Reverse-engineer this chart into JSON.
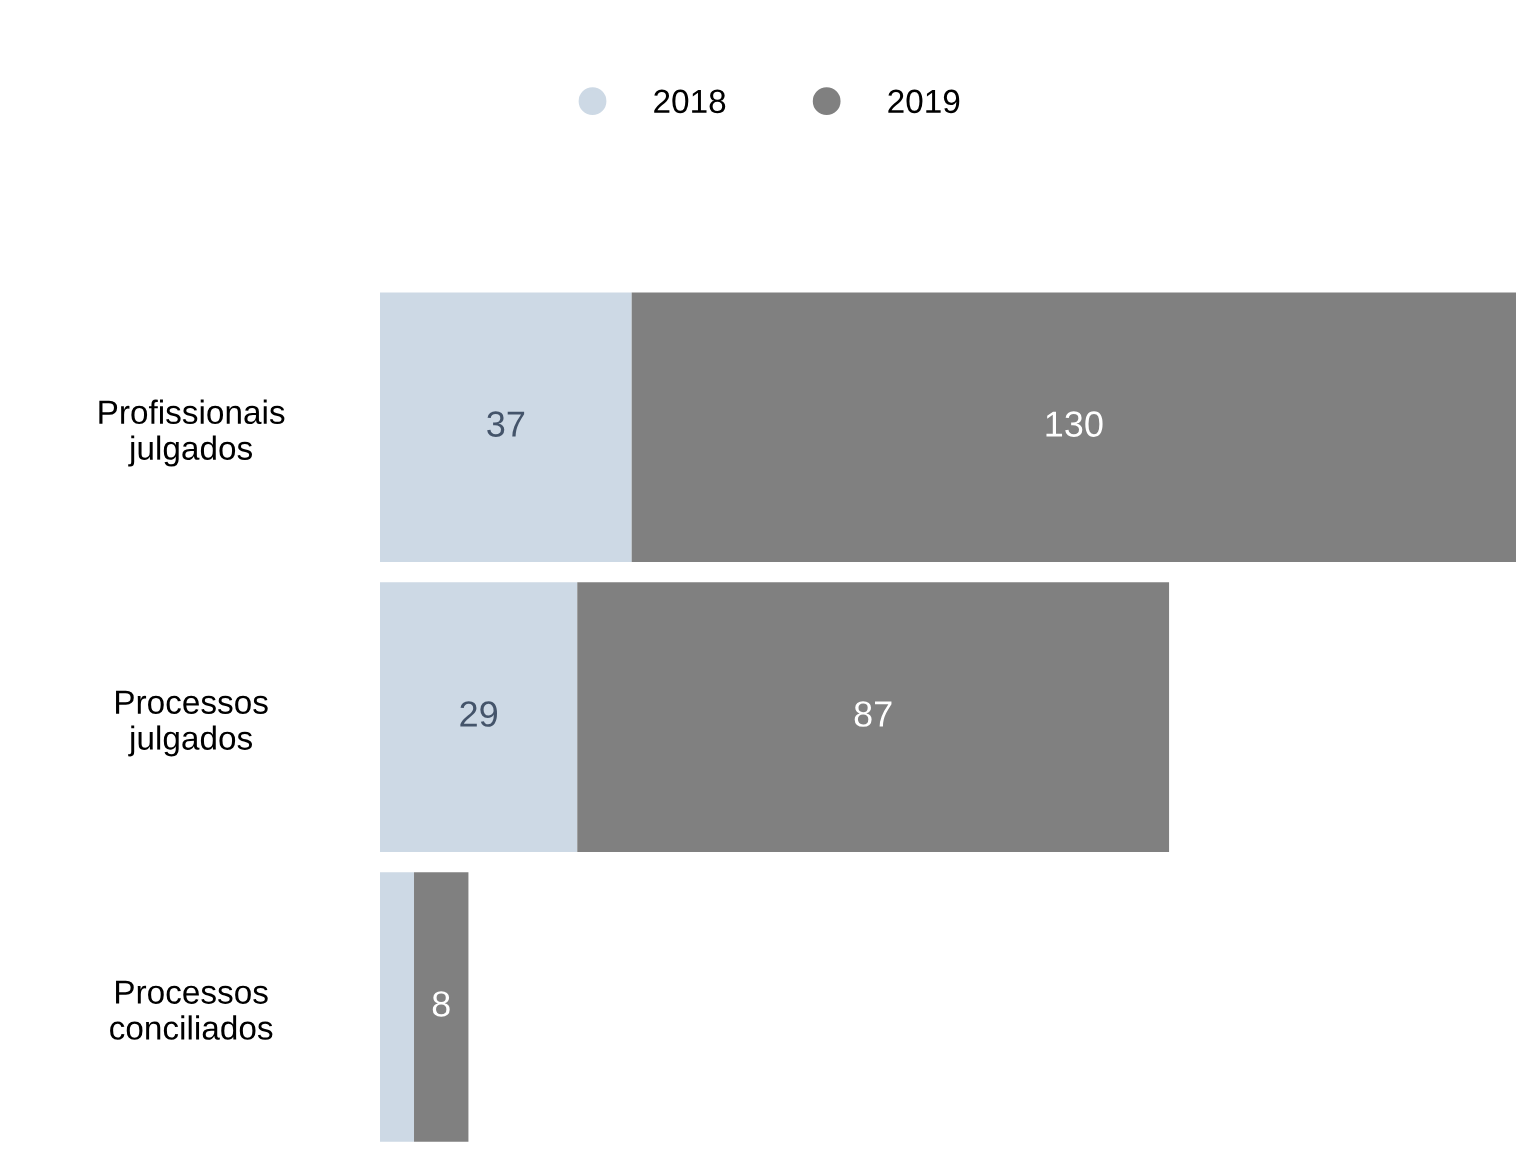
{
  "chart_data": {
    "type": "bar",
    "orientation": "horizontal",
    "stacked": true,
    "categories": [
      "Profissionais\njulgados",
      "Processos\njulgados",
      "Processos\nconciliados"
    ],
    "series": [
      {
        "name": "2018",
        "color": "#cdd9e5",
        "values": [
          37,
          29,
          5
        ],
        "value_labels": [
          "37",
          "29",
          null
        ]
      },
      {
        "name": "2019",
        "color": "#808080",
        "values": [
          130,
          87,
          8
        ],
        "value_labels": [
          "130",
          "87",
          "8"
        ]
      }
    ],
    "xlim": [
      0,
      167
    ],
    "tick_labels": "y",
    "legend": "top",
    "marker": "circle",
    "grid": false
  }
}
